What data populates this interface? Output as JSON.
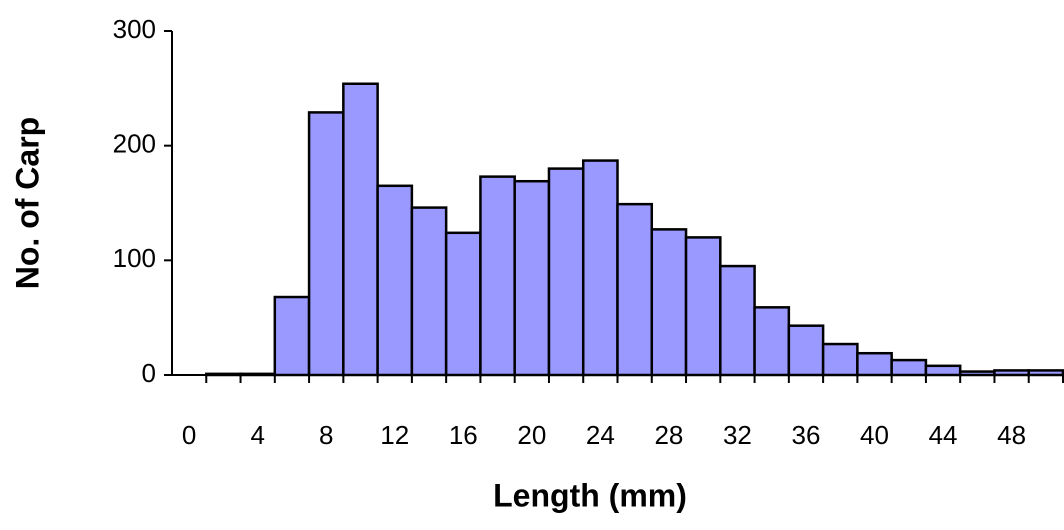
{
  "chart_data": {
    "type": "bar",
    "x_label": "Length (mm)",
    "y_label": "No. of Carp",
    "categories": [
      "0",
      null,
      "4",
      null,
      "8",
      null,
      "12",
      null,
      "16",
      null,
      "20",
      null,
      "24",
      null,
      "28",
      null,
      "32",
      null,
      "36",
      null,
      "40",
      null,
      "44",
      null,
      "48",
      null
    ],
    "values": [
      0,
      1,
      1,
      68,
      229,
      254,
      165,
      146,
      124,
      173,
      169,
      180,
      187,
      149,
      127,
      120,
      95,
      59,
      43,
      27,
      19,
      13,
      8,
      3,
      4,
      4
    ],
    "color": "#9999ff",
    "ylim": [
      0,
      300
    ],
    "yticks": [
      0,
      100,
      200,
      300
    ],
    "grid": false
  }
}
